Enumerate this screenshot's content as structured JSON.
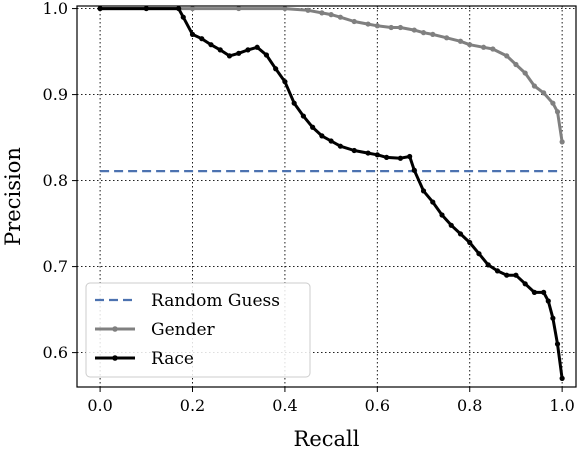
{
  "chart_data": {
    "type": "line",
    "xlabel": "Recall",
    "ylabel": "Precision",
    "xlim": [
      -0.05,
      1.03
    ],
    "ylim": [
      0.56,
      1.003
    ],
    "xticks": [
      0.0,
      0.2,
      0.4,
      0.6,
      0.8,
      1.0
    ],
    "xtick_labels": [
      "0.0",
      "0.2",
      "0.4",
      "0.6",
      "0.8",
      "1.0"
    ],
    "yticks": [
      0.6,
      0.7,
      0.8,
      0.9,
      1.0
    ],
    "ytick_labels": [
      "0.6",
      "0.7",
      "0.8",
      "0.9",
      "1.0"
    ],
    "grid": true,
    "grid_style": "dotted",
    "legend_position": "lower-left",
    "series": [
      {
        "name": "Random Guess",
        "style": "dashed",
        "color": "#4c72b0",
        "marker": "none",
        "x": [
          0.0,
          1.0
        ],
        "y": [
          0.811,
          0.811
        ]
      },
      {
        "name": "Gender",
        "style": "solid",
        "color": "#808080",
        "marker": "dot",
        "x": [
          0.0,
          0.1,
          0.2,
          0.3,
          0.4,
          0.45,
          0.48,
          0.5,
          0.52,
          0.55,
          0.58,
          0.6,
          0.63,
          0.65,
          0.68,
          0.7,
          0.72,
          0.75,
          0.78,
          0.8,
          0.83,
          0.85,
          0.88,
          0.9,
          0.92,
          0.94,
          0.96,
          0.98,
          0.99,
          1.0
        ],
        "y": [
          1.0,
          1.0,
          1.0,
          1.0,
          1.0,
          0.998,
          0.995,
          0.993,
          0.99,
          0.985,
          0.982,
          0.98,
          0.978,
          0.978,
          0.975,
          0.972,
          0.97,
          0.966,
          0.962,
          0.958,
          0.955,
          0.953,
          0.945,
          0.935,
          0.925,
          0.91,
          0.902,
          0.89,
          0.88,
          0.845
        ]
      },
      {
        "name": "Race",
        "style": "solid",
        "color": "#000000",
        "marker": "dot",
        "x": [
          0.0,
          0.1,
          0.17,
          0.18,
          0.2,
          0.22,
          0.24,
          0.26,
          0.28,
          0.3,
          0.32,
          0.34,
          0.36,
          0.38,
          0.4,
          0.42,
          0.44,
          0.46,
          0.48,
          0.5,
          0.52,
          0.55,
          0.58,
          0.6,
          0.62,
          0.65,
          0.67,
          0.68,
          0.7,
          0.72,
          0.74,
          0.76,
          0.78,
          0.8,
          0.82,
          0.84,
          0.86,
          0.88,
          0.9,
          0.92,
          0.94,
          0.96,
          0.97,
          0.98,
          0.99,
          1.0
        ],
        "y": [
          1.0,
          1.0,
          1.0,
          0.99,
          0.97,
          0.965,
          0.958,
          0.952,
          0.945,
          0.948,
          0.952,
          0.955,
          0.946,
          0.93,
          0.915,
          0.89,
          0.875,
          0.862,
          0.852,
          0.846,
          0.84,
          0.835,
          0.832,
          0.83,
          0.827,
          0.826,
          0.828,
          0.812,
          0.788,
          0.775,
          0.76,
          0.748,
          0.738,
          0.728,
          0.715,
          0.702,
          0.695,
          0.69,
          0.69,
          0.68,
          0.67,
          0.67,
          0.66,
          0.64,
          0.61,
          0.57
        ]
      }
    ]
  }
}
